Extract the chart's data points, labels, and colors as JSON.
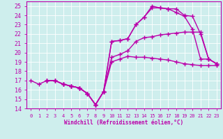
{
  "xlabel": "Windchill (Refroidissement éolien,°C)",
  "xlim": [
    -0.5,
    23.5
  ],
  "ylim": [
    14,
    25.5
  ],
  "yticks": [
    14,
    15,
    16,
    17,
    18,
    19,
    20,
    21,
    22,
    23,
    24,
    25
  ],
  "xticks": [
    0,
    1,
    2,
    3,
    4,
    5,
    6,
    7,
    8,
    9,
    10,
    11,
    12,
    13,
    14,
    15,
    16,
    17,
    18,
    19,
    20,
    21,
    22,
    23
  ],
  "bg_color": "#ceeeed",
  "line_color": "#bb00aa",
  "line_width": 1.0,
  "marker": "+",
  "markersize": 4,
  "lines": [
    {
      "x": [
        0,
        1,
        2,
        3,
        4,
        5,
        6,
        7,
        8,
        9,
        10,
        11,
        12,
        13,
        14,
        15,
        16,
        17,
        18,
        19,
        20,
        21,
        22,
        23
      ],
      "y": [
        17,
        16.6,
        17.0,
        17.0,
        16.6,
        16.4,
        16.2,
        15.6,
        14.4,
        15.8,
        19.0,
        19.3,
        19.6,
        19.5,
        19.5,
        19.4,
        19.3,
        19.2,
        19.0,
        18.8,
        18.7,
        18.6,
        18.6,
        18.6
      ]
    },
    {
      "x": [
        2,
        3,
        4,
        5,
        6,
        7,
        8,
        9,
        10,
        11,
        12,
        13,
        14,
        15,
        16,
        17,
        18,
        19,
        20,
        21,
        22,
        23
      ],
      "y": [
        17.0,
        17.0,
        16.6,
        16.4,
        16.2,
        15.6,
        14.4,
        15.8,
        19.5,
        19.8,
        20.2,
        21.2,
        21.6,
        21.7,
        21.9,
        22.0,
        22.1,
        22.2,
        22.2,
        22.2,
        19.3,
        18.8
      ]
    },
    {
      "x": [
        2,
        3,
        4,
        5,
        6,
        7,
        8,
        9,
        10,
        11,
        12,
        13,
        14,
        15,
        16,
        17,
        18,
        19,
        20,
        21,
        22,
        23
      ],
      "y": [
        17.0,
        17.0,
        16.6,
        16.4,
        16.2,
        15.6,
        14.4,
        15.8,
        21.2,
        21.3,
        21.5,
        23.0,
        23.8,
        24.8,
        24.8,
        24.7,
        24.7,
        24.0,
        23.9,
        22.0,
        19.3,
        18.8
      ]
    },
    {
      "x": [
        2,
        3,
        4,
        5,
        6,
        7,
        8,
        9,
        10,
        11,
        12,
        13,
        14,
        15,
        16,
        17,
        18,
        19,
        20,
        21,
        22,
        23
      ],
      "y": [
        17.0,
        17.0,
        16.6,
        16.4,
        16.2,
        15.6,
        14.4,
        15.8,
        21.2,
        21.3,
        21.5,
        23.0,
        23.8,
        25.0,
        24.8,
        24.7,
        24.3,
        23.9,
        22.5,
        19.3,
        19.3,
        18.8
      ]
    }
  ]
}
